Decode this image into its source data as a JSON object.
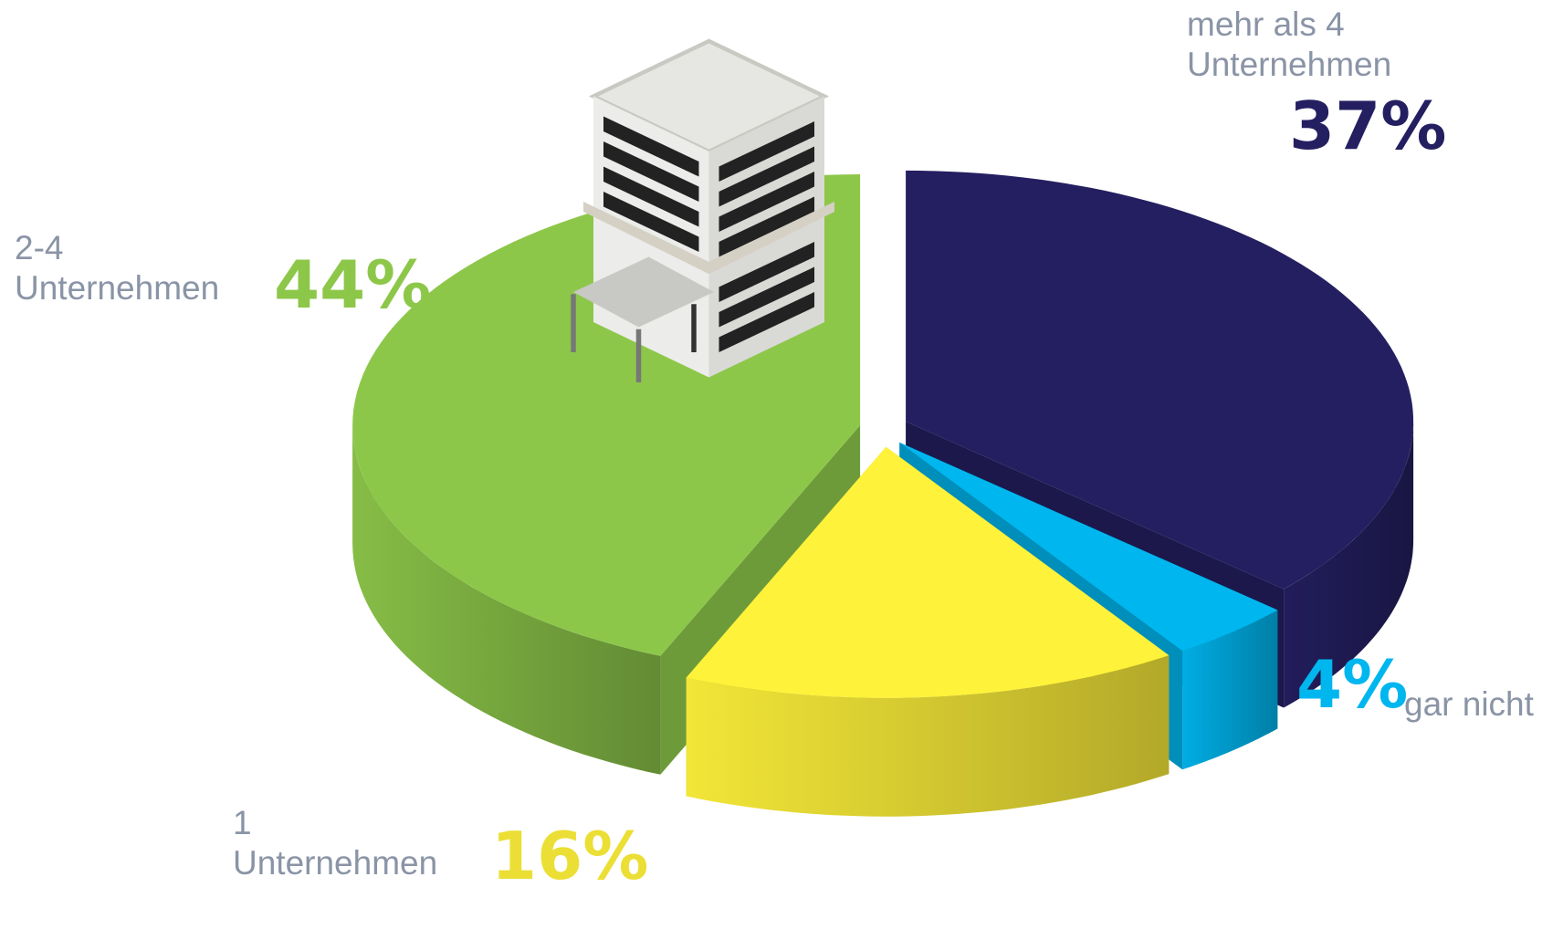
{
  "chart_data": {
    "type": "pie",
    "categories": [
      "mehr als 4 Unternehmen",
      "gar nicht",
      "1 Unternehmen",
      "2-4 Unternehmen"
    ],
    "values": [
      37,
      4,
      16,
      44
    ],
    "value_labels": [
      "37%",
      "4%",
      "16%",
      "44%"
    ],
    "colors": [
      "#241f60",
      "#00b6ef",
      "#fff23a",
      "#8dc74a"
    ]
  }
}
